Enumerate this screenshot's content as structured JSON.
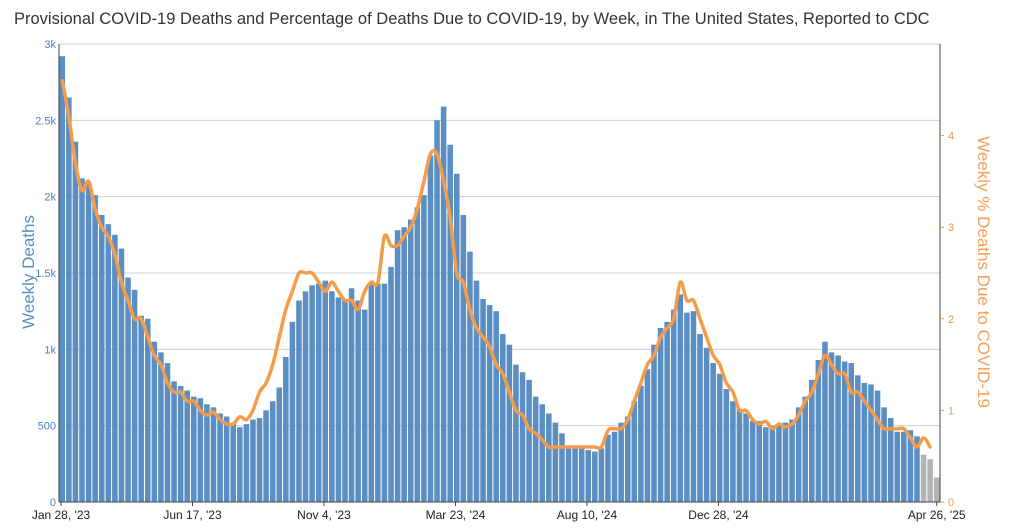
{
  "title": "Provisional COVID-19 Deaths and Percentage of Deaths Due to COVID-19, by Week, in The United States, Reported to CDC",
  "colors": {
    "bars": "#5b8fc3",
    "bars_incomplete": "#b3b3b3",
    "line": "#f59c4c",
    "grid": "#d0d0d0"
  },
  "chart_data": {
    "type": "bar",
    "title": "Provisional COVID-19 Deaths and Percentage of Deaths Due to COVID-19, by Week, in The United States, Reported to CDC",
    "xlabel": "",
    "ylabel": "Weekly Deaths",
    "y2label": "Weekly % Deaths Due to COVID-19",
    "ylim": [
      0,
      3000
    ],
    "y2lim": [
      0,
      5
    ],
    "yticks": [
      "0",
      "500",
      "1k",
      "1.5k",
      "2k",
      "2.5k",
      "3k"
    ],
    "y2ticks": [
      "0",
      "1",
      "2",
      "3",
      "4"
    ],
    "xticks": [
      "Jan 28, '23",
      "Jun 17, '23",
      "Nov 4, '23",
      "Mar 23, '24",
      "Aug 10, '24",
      "Dec 28, '24",
      "Apr 26, '25"
    ],
    "grid": true,
    "incomplete_last_weeks": 3,
    "series": [
      {
        "name": "Weekly Deaths",
        "values": [
          2920,
          2650,
          2360,
          2120,
          2090,
          2010,
          1880,
          1820,
          1750,
          1660,
          1470,
          1390,
          1220,
          1200,
          1050,
          980,
          910,
          790,
          760,
          730,
          690,
          680,
          640,
          620,
          580,
          560,
          520,
          490,
          510,
          540,
          550,
          600,
          660,
          750,
          950,
          1180,
          1320,
          1380,
          1420,
          1430,
          1450,
          1380,
          1340,
          1330,
          1400,
          1320,
          1260,
          1440,
          1430,
          1430,
          1540,
          1780,
          1800,
          1850,
          1930,
          2010,
          2270,
          2500,
          2590,
          2340,
          2150,
          1880,
          1640,
          1450,
          1330,
          1290,
          1250,
          1100,
          1030,
          900,
          850,
          800,
          690,
          640,
          580,
          520,
          450,
          350,
          350,
          360,
          340,
          330,
          350,
          440,
          460,
          520,
          560,
          660,
          760,
          870,
          1030,
          1140,
          1180,
          1260,
          1360,
          1240,
          1250,
          1100,
          1010,
          910,
          840,
          740,
          660,
          610,
          580,
          530,
          530,
          490,
          500,
          500,
          520,
          540,
          620,
          690,
          800,
          930,
          1050,
          980,
          960,
          920,
          910,
          830,
          780,
          770,
          730,
          620,
          550,
          460,
          460,
          470,
          430,
          310,
          280,
          160
        ]
      },
      {
        "name": "Weekly % Deaths Due to COVID-19",
        "values": [
          4.6,
          4.2,
          3.7,
          3.4,
          3.5,
          3.2,
          3.0,
          2.9,
          2.7,
          2.4,
          2.2,
          2.0,
          2.0,
          1.8,
          1.6,
          1.5,
          1.3,
          1.2,
          1.2,
          1.1,
          1.1,
          1.0,
          0.95,
          0.98,
          0.9,
          0.85,
          0.85,
          0.93,
          0.9,
          1.0,
          1.2,
          1.3,
          1.5,
          1.8,
          2.1,
          2.3,
          2.5,
          2.5,
          2.5,
          2.4,
          2.3,
          2.4,
          2.3,
          2.2,
          2.2,
          2.1,
          2.3,
          2.4,
          2.4,
          2.9,
          2.8,
          2.8,
          2.9,
          3.0,
          3.2,
          3.5,
          3.8,
          3.8,
          3.5,
          3.1,
          2.5,
          2.4,
          2.1,
          1.9,
          1.8,
          1.7,
          1.5,
          1.4,
          1.2,
          1.0,
          0.95,
          0.8,
          0.75,
          0.68,
          0.6,
          0.6,
          0.6,
          0.6,
          0.6,
          0.6,
          0.6,
          0.6,
          0.6,
          0.78,
          0.8,
          0.8,
          0.9,
          1.1,
          1.3,
          1.5,
          1.6,
          1.8,
          1.9,
          2.0,
          2.4,
          2.2,
          2.2,
          2.0,
          1.8,
          1.6,
          1.5,
          1.3,
          1.2,
          1.0,
          1.0,
          0.9,
          0.85,
          0.88,
          0.8,
          0.85,
          0.82,
          0.85,
          0.95,
          1.1,
          1.2,
          1.4,
          1.6,
          1.5,
          1.4,
          1.4,
          1.2,
          1.2,
          1.1,
          1.0,
          0.9,
          0.8,
          0.8,
          0.8,
          0.8,
          0.7,
          0.6,
          0.7,
          0.6
        ]
      }
    ]
  }
}
